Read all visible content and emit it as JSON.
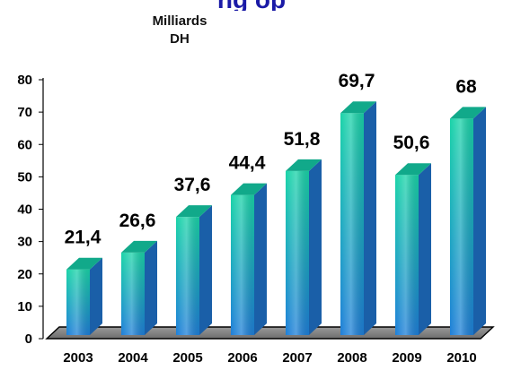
{
  "chart_data": {
    "type": "bar",
    "title": "",
    "unit_label": [
      "Milliards",
      "DH"
    ],
    "categories": [
      "2003",
      "2004",
      "2005",
      "2006",
      "2007",
      "2008",
      "2009",
      "2010"
    ],
    "values": [
      21.4,
      26.6,
      37.6,
      44.4,
      51.8,
      69.7,
      50.6,
      68
    ],
    "data_labels": [
      "21,4",
      "26,6",
      "37,6",
      "44,4",
      "51,8",
      "69,7",
      "50,6",
      "68"
    ],
    "yticks": [
      "0",
      "10",
      "20",
      "30",
      "40",
      "50",
      "60",
      "70",
      "80"
    ],
    "ylim": [
      0,
      80
    ],
    "grid": false,
    "legend": "none",
    "colors": {
      "bar_top": "#19d3a8",
      "bar_bottom": "#1e7fd8",
      "bar_side": "#1a5fa8",
      "bar_cap": "#11a98a",
      "floor": "#8a8a8a",
      "title": "#1a1aa6"
    }
  }
}
